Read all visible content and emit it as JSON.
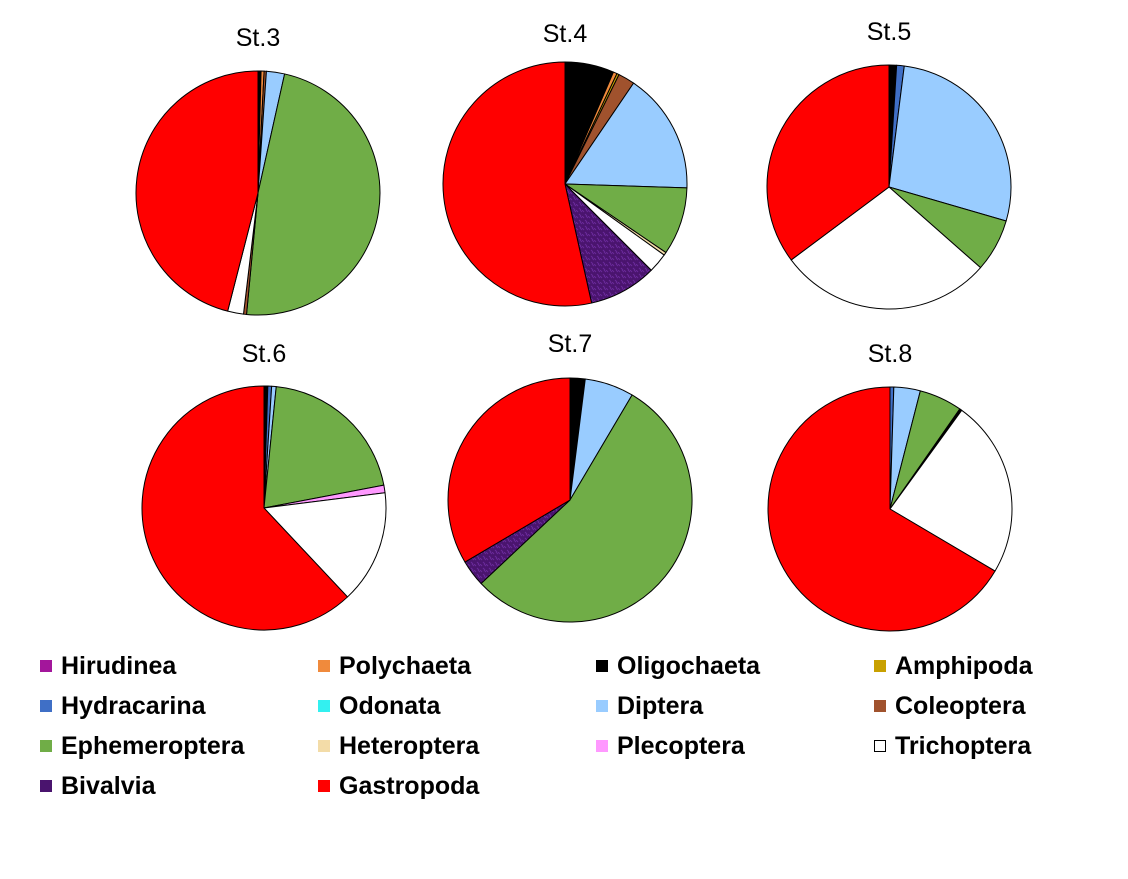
{
  "chart_data": {
    "type": "pie",
    "categories": [
      "Hirudinea",
      "Polychaeta",
      "Oligochaeta",
      "Amphipoda",
      "Hydracarina",
      "Odonata",
      "Diptera",
      "Coleoptera",
      "Ephemeroptera",
      "Heteroptera",
      "Plecoptera",
      "Trichoptera",
      "Bivalvia",
      "Gastropoda"
    ],
    "colors": {
      "Hirudinea": "#a3169b",
      "Polychaeta": "#f08a3c",
      "Oligochaeta": "#000000",
      "Amphipoda": "#c8a000",
      "Hydracarina": "#3f6fc6",
      "Odonata": "#33f0f0",
      "Diptera": "#99ccff",
      "Coleoptera": "#a0522d",
      "Ephemeroptera": "#70ad47",
      "Heteroptera": "#f3dca8",
      "Plecoptera": "#ff99ff",
      "Trichoptera": "#ffffff",
      "Bivalvia": "#4a146e",
      "Gastropoda": "#ff0000"
    },
    "charts": [
      {
        "title": "St.3",
        "slices": [
          {
            "label": "Oligochaeta",
            "value": 0.4
          },
          {
            "label": "Polychaeta",
            "value": 0.4
          },
          {
            "label": "Coleoptera",
            "value": 0.3
          },
          {
            "label": "Diptera",
            "value": 2.4
          },
          {
            "label": "Ephemeroptera",
            "value": 48.0
          },
          {
            "label": "Coleoptera",
            "value": 0.4
          },
          {
            "label": "Trichoptera",
            "value": 2.1
          },
          {
            "label": "Gastropoda",
            "value": 46.0
          }
        ]
      },
      {
        "title": "St.4",
        "slices": [
          {
            "label": "Oligochaeta",
            "value": 6.5
          },
          {
            "label": "Polychaeta",
            "value": 0.5
          },
          {
            "label": "Amphipoda",
            "value": 0.3
          },
          {
            "label": "Coleoptera",
            "value": 2.2
          },
          {
            "label": "Diptera",
            "value": 16.0
          },
          {
            "label": "Ephemeroptera",
            "value": 9.0
          },
          {
            "label": "Heteroptera",
            "value": 0.4
          },
          {
            "label": "Trichoptera",
            "value": 2.6
          },
          {
            "label": "Bivalvia",
            "value": 9.0
          },
          {
            "label": "Gastropoda",
            "value": 53.5
          }
        ]
      },
      {
        "title": "St.5",
        "slices": [
          {
            "label": "Oligochaeta",
            "value": 1.0
          },
          {
            "label": "Hydracarina",
            "value": 1.0
          },
          {
            "label": "Diptera",
            "value": 27.5
          },
          {
            "label": "Ephemeroptera",
            "value": 7.0
          },
          {
            "label": "Trichoptera",
            "value": 28.3
          },
          {
            "label": "Gastropoda",
            "value": 35.2
          }
        ]
      },
      {
        "title": "St.6",
        "slices": [
          {
            "label": "Oligochaeta",
            "value": 0.5
          },
          {
            "label": "Hydracarina",
            "value": 0.5
          },
          {
            "label": "Diptera",
            "value": 0.6
          },
          {
            "label": "Ephemeroptera",
            "value": 20.4
          },
          {
            "label": "Plecoptera",
            "value": 1.0
          },
          {
            "label": "Trichoptera",
            "value": 15.0
          },
          {
            "label": "Gastropoda",
            "value": 62.0
          }
        ]
      },
      {
        "title": "St.7",
        "slices": [
          {
            "label": "Oligochaeta",
            "value": 2.0
          },
          {
            "label": "Diptera",
            "value": 6.5
          },
          {
            "label": "Ephemeroptera",
            "value": 54.5
          },
          {
            "label": "Bivalvia",
            "value": 3.5
          },
          {
            "label": "Gastropoda",
            "value": 33.5
          }
        ]
      },
      {
        "title": "St.8",
        "slices": [
          {
            "label": "Hydracarina",
            "value": 0.5
          },
          {
            "label": "Diptera",
            "value": 3.5
          },
          {
            "label": "Ephemeroptera",
            "value": 5.7
          },
          {
            "label": "Oligochaeta",
            "value": 0.3
          },
          {
            "label": "Trichoptera",
            "value": 23.5
          },
          {
            "label": "Gastropoda",
            "value": 66.5
          }
        ]
      }
    ]
  },
  "legend": [
    {
      "name": "Hirudinea",
      "color": "#a3169b"
    },
    {
      "name": "Polychaeta",
      "color": "#f08a3c"
    },
    {
      "name": "Oligochaeta",
      "color": "#000000"
    },
    {
      "name": "Amphipoda",
      "color": "#c8a000"
    },
    {
      "name": "Hydracarina",
      "color": "#3f6fc6"
    },
    {
      "name": "Odonata",
      "color": "#33f0f0"
    },
    {
      "name": "Diptera",
      "color": "#99ccff"
    },
    {
      "name": "Coleoptera",
      "color": "#a0522d"
    },
    {
      "name": "Ephemeroptera",
      "color": "#70ad47"
    },
    {
      "name": "Heteroptera",
      "color": "#f3dca8"
    },
    {
      "name": "Plecoptera",
      "color": "#ff99ff"
    },
    {
      "name": "Trichoptera",
      "color": "#ffffff"
    },
    {
      "name": "Bivalvia",
      "color": "#4a146e"
    },
    {
      "name": "Gastropoda",
      "color": "#ff0000"
    }
  ]
}
